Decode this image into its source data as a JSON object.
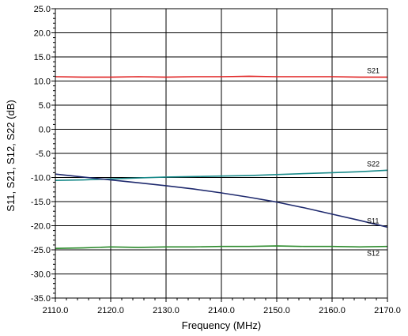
{
  "chart_data": {
    "type": "line",
    "xlabel": "Frequency (MHz)",
    "ylabel": "S11, S21, S12, S22 (dB)",
    "xlim": [
      2110,
      2170
    ],
    "ylim": [
      -35,
      25
    ],
    "x_ticks": [
      "2110.0",
      "2120.0",
      "2130.0",
      "2140.0",
      "2150.0",
      "2160.0",
      "2170.0"
    ],
    "y_ticks": [
      "25.0",
      "20.0",
      "15.0",
      "10.0",
      "5.0",
      "0.0",
      "-5.0",
      "-10.0",
      "-15.0",
      "-20.0",
      "-25.0",
      "-30.0",
      "-35.0"
    ],
    "grid": true,
    "series": [
      {
        "name": "S21",
        "color": "#e02020",
        "x": [
          2110,
          2115,
          2120,
          2125,
          2130,
          2135,
          2140,
          2145,
          2150,
          2155,
          2160,
          2165,
          2170
        ],
        "y": [
          10.9,
          10.8,
          10.8,
          10.9,
          10.8,
          10.9,
          10.9,
          11.0,
          10.9,
          10.9,
          10.9,
          10.8,
          10.8
        ]
      },
      {
        "name": "S22",
        "color": "#1a8a8a",
        "x": [
          2110,
          2115,
          2120,
          2125,
          2130,
          2135,
          2140,
          2145,
          2150,
          2155,
          2160,
          2165,
          2170
        ],
        "y": [
          -10.6,
          -10.5,
          -10.3,
          -10.1,
          -9.9,
          -9.8,
          -9.7,
          -9.6,
          -9.4,
          -9.2,
          -9.0,
          -8.8,
          -8.5
        ]
      },
      {
        "name": "S11",
        "color": "#1f2a6e",
        "x": [
          2110,
          2115,
          2120,
          2125,
          2130,
          2135,
          2140,
          2145,
          2150,
          2155,
          2160,
          2165,
          2170
        ],
        "y": [
          -9.3,
          -9.9,
          -10.5,
          -11.1,
          -11.7,
          -12.4,
          -13.2,
          -14.1,
          -15.1,
          -16.3,
          -17.6,
          -18.9,
          -20.3
        ]
      },
      {
        "name": "S12",
        "color": "#2a8a2a",
        "x": [
          2110,
          2115,
          2120,
          2125,
          2130,
          2135,
          2140,
          2145,
          2150,
          2155,
          2160,
          2165,
          2170
        ],
        "y": [
          -24.7,
          -24.6,
          -24.4,
          -24.5,
          -24.4,
          -24.4,
          -24.3,
          -24.3,
          -24.2,
          -24.3,
          -24.3,
          -24.4,
          -24.3
        ]
      }
    ]
  }
}
